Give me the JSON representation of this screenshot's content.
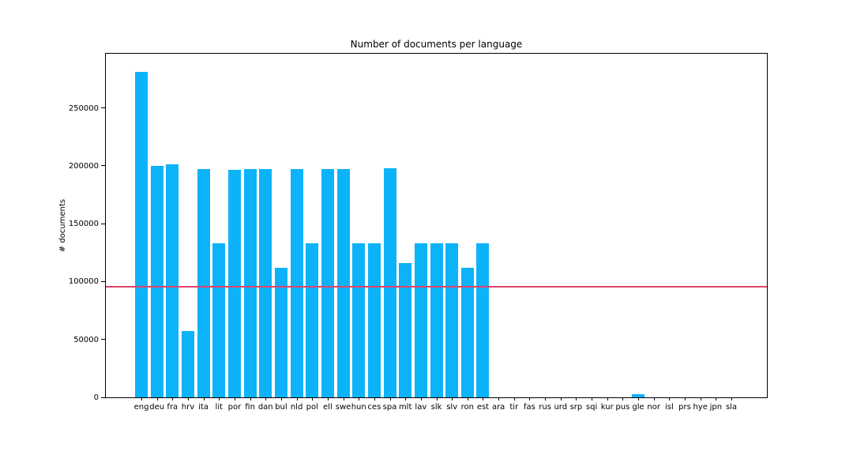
{
  "chart_data": {
    "type": "bar",
    "title": "Number of documents per language",
    "xlabel": "",
    "ylabel": "# documents",
    "categories": [
      "eng",
      "deu",
      "fra",
      "hrv",
      "ita",
      "lit",
      "por",
      "fin",
      "dan",
      "bul",
      "nld",
      "pol",
      "ell",
      "swe",
      "hun",
      "ces",
      "spa",
      "mlt",
      "lav",
      "slk",
      "slv",
      "ron",
      "est",
      "ara",
      "tir",
      "fas",
      "rus",
      "urd",
      "srp",
      "sqi",
      "kur",
      "pus",
      "gle",
      "nor",
      "isl",
      "prs",
      "hye",
      "jpn",
      "sla"
    ],
    "values": [
      281000,
      200000,
      201000,
      57500,
      197500,
      133000,
      196500,
      197500,
      197500,
      112000,
      197500,
      133000,
      197500,
      197000,
      133000,
      133000,
      198000,
      116000,
      133000,
      133000,
      133000,
      112000,
      133000,
      0,
      0,
      0,
      0,
      0,
      0,
      0,
      0,
      0,
      2800,
      0,
      0,
      0,
      0,
      0,
      0
    ],
    "yticks": [
      0,
      50000,
      100000,
      150000,
      200000,
      250000
    ],
    "ylim": [
      0,
      296800
    ],
    "grid": false,
    "legend": null,
    "bar_color": "#0db3f8",
    "hline": {
      "value": 95500,
      "color": "#e0446e"
    },
    "axis_color": "#000000",
    "background_color": "#ffffff"
  }
}
